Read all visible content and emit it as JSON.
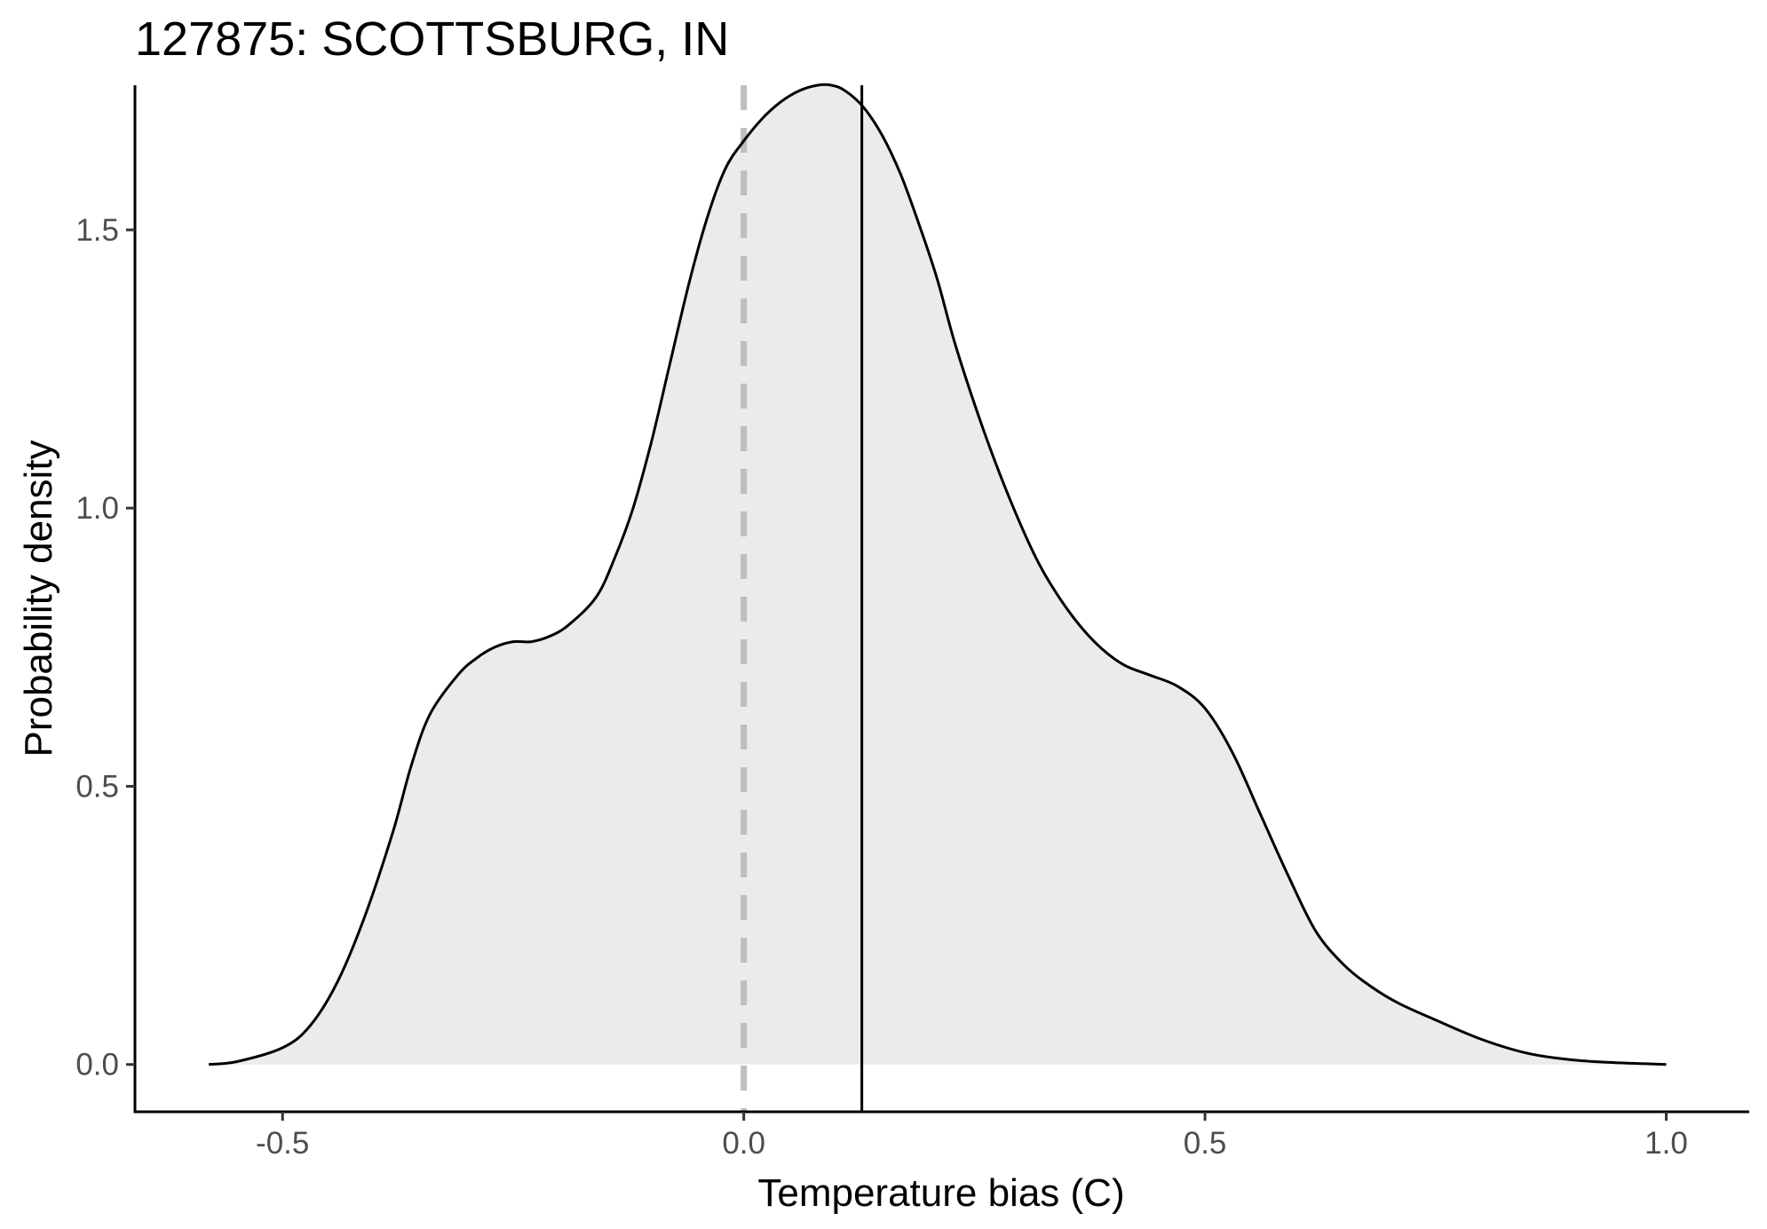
{
  "chart_data": {
    "type": "area",
    "title": "127875: SCOTTSBURG, IN",
    "xlabel": "Temperature bias (C)",
    "ylabel": "Probability density",
    "xlim": [
      -0.66,
      1.09
    ],
    "ylim": [
      -0.085,
      1.76
    ],
    "xticks": [
      {
        "value": -0.5,
        "label": "-0.5"
      },
      {
        "value": 0.0,
        "label": "0.0"
      },
      {
        "value": 0.5,
        "label": "0.5"
      },
      {
        "value": 1.0,
        "label": "1.0"
      }
    ],
    "yticks": [
      {
        "value": 0.0,
        "label": "0.0"
      },
      {
        "value": 0.5,
        "label": "0.5"
      },
      {
        "value": 1.0,
        "label": "1.0"
      },
      {
        "value": 1.5,
        "label": "1.5"
      }
    ],
    "grid": false,
    "fill_color": "#ebebeb",
    "line_color": "#000000",
    "reference_lines": [
      {
        "x": 0.0,
        "style": "dashed",
        "color": "#bebebe"
      },
      {
        "x": 0.128,
        "style": "solid",
        "color": "#000000"
      }
    ],
    "series": [
      {
        "x": [
          -0.58,
          -0.55,
          -0.5,
          -0.47,
          -0.44,
          -0.41,
          -0.38,
          -0.36,
          -0.34,
          -0.31,
          -0.29,
          -0.27,
          -0.25,
          -0.23,
          -0.21,
          -0.19,
          -0.16,
          -0.14,
          -0.12,
          -0.1,
          -0.08,
          -0.06,
          -0.04,
          -0.02,
          0.0,
          0.02,
          0.04,
          0.06,
          0.08,
          0.095,
          0.11,
          0.13,
          0.15,
          0.17,
          0.19,
          0.21,
          0.23,
          0.26,
          0.29,
          0.32,
          0.35,
          0.38,
          0.41,
          0.44,
          0.47,
          0.5,
          0.53,
          0.56,
          0.59,
          0.62,
          0.65,
          0.68,
          0.71,
          0.75,
          0.8,
          0.85,
          0.9,
          0.95,
          1.0
        ],
        "y": [
          0.0,
          0.005,
          0.03,
          0.07,
          0.15,
          0.27,
          0.42,
          0.54,
          0.63,
          0.7,
          0.73,
          0.75,
          0.76,
          0.76,
          0.77,
          0.79,
          0.84,
          0.91,
          1.0,
          1.12,
          1.26,
          1.4,
          1.52,
          1.61,
          1.66,
          1.7,
          1.73,
          1.75,
          1.76,
          1.76,
          1.75,
          1.72,
          1.67,
          1.6,
          1.51,
          1.41,
          1.29,
          1.14,
          1.01,
          0.9,
          0.82,
          0.76,
          0.72,
          0.7,
          0.68,
          0.64,
          0.56,
          0.45,
          0.34,
          0.24,
          0.18,
          0.14,
          0.11,
          0.08,
          0.045,
          0.02,
          0.008,
          0.003,
          0.0
        ]
      }
    ]
  }
}
